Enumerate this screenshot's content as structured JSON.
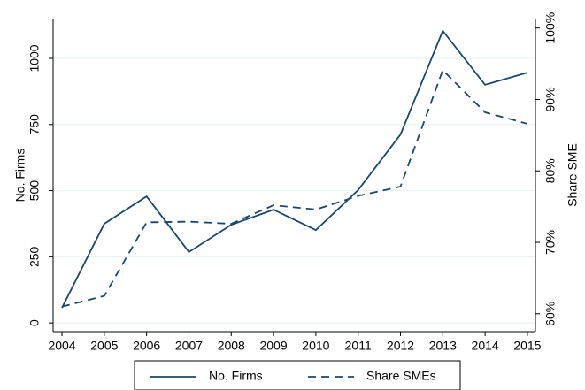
{
  "chart_data": {
    "type": "line",
    "x": [
      2004,
      2005,
      2006,
      2007,
      2008,
      2009,
      2010,
      2011,
      2012,
      2013,
      2014,
      2015
    ],
    "xlim": [
      2003.79,
      2015.19
    ],
    "xticks": [
      2004,
      2005,
      2006,
      2007,
      2008,
      2009,
      2010,
      2011,
      2012,
      2013,
      2014,
      2015
    ],
    "y_label": "No. Firms",
    "y2_label": "Share SME",
    "ylim": [
      -33,
      1147
    ],
    "yticks": [
      0,
      250,
      500,
      750,
      1000
    ],
    "y2lim": [
      57.5,
      101.2
    ],
    "y2ticks": [
      {
        "value": 60,
        "label": "60%"
      },
      {
        "value": 70,
        "label": "70%"
      },
      {
        "value": 80,
        "label": "80%"
      },
      {
        "value": 90,
        "label": "90%"
      },
      {
        "value": 100,
        "label": "100%"
      }
    ],
    "grid": true,
    "legend": "bottom",
    "series": [
      {
        "name": "No. Firms",
        "color": "#1a476f",
        "values": [
          57,
          375,
          478,
          268,
          371,
          428,
          351,
          502,
          712,
          1104,
          900,
          946
        ]
      },
      {
        "name": "Share SMEs",
        "color": "#1a476f",
        "axis": "y2",
        "dash": true,
        "values": [
          61.0,
          62.5,
          72.8,
          72.9,
          72.6,
          75.2,
          74.6,
          76.5,
          77.8,
          94.1,
          88.2,
          86.6
        ]
      }
    ]
  }
}
